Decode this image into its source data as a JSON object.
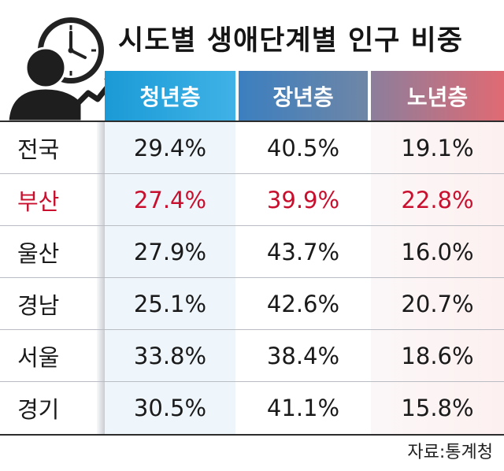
{
  "title": "시도별 생애단계별 인구 비중",
  "columns": [
    "청년층",
    "장년층",
    "노년층"
  ],
  "rows": [
    {
      "region": "전국",
      "values": [
        "29.4%",
        "40.5%",
        "19.1%"
      ],
      "highlight": false
    },
    {
      "region": "부산",
      "values": [
        "27.4%",
        "39.9%",
        "22.8%"
      ],
      "highlight": true
    },
    {
      "region": "울산",
      "values": [
        "27.9%",
        "43.7%",
        "16.0%"
      ],
      "highlight": false
    },
    {
      "region": "경남",
      "values": [
        "25.1%",
        "42.6%",
        "20.7%"
      ],
      "highlight": false
    },
    {
      "region": "서울",
      "values": [
        "33.8%",
        "38.4%",
        "18.6%"
      ],
      "highlight": false
    },
    {
      "region": "경기",
      "values": [
        "30.5%",
        "41.1%",
        "15.8%"
      ],
      "highlight": false
    }
  ],
  "source": "자료:통계청",
  "colors": {
    "highlight": "#c8102e",
    "youth": "#1b9ad6",
    "middle": "#4a7fb5",
    "senior": "#d8707a"
  },
  "icons": [
    "clock-icon",
    "person-silhouette-icon",
    "rising-arrow-icon"
  ]
}
